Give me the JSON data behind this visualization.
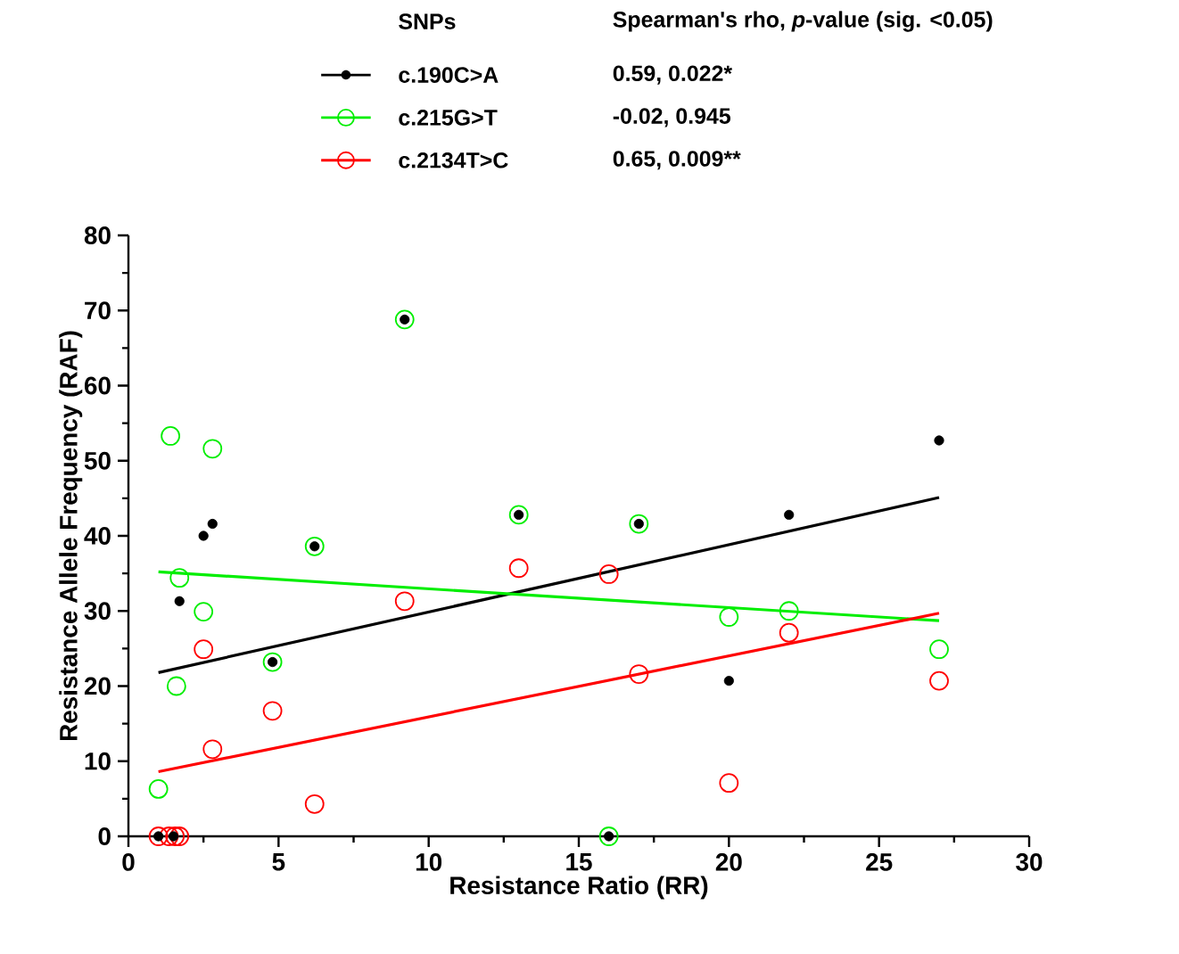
{
  "chart_data": {
    "type": "scatter",
    "xlabel": "Resistance Ratio (RR)",
    "ylabel": "Resistance Allele Frequency (RAF)",
    "legend_title": "SNPs",
    "legend": "top",
    "xlim": [
      0,
      30
    ],
    "xticks": [
      0,
      5,
      10,
      15,
      20,
      25,
      30
    ],
    "ylim": [
      0,
      80
    ],
    "yticks": [
      0,
      10,
      20,
      30,
      40,
      50,
      60,
      70,
      80
    ],
    "annotations": [
      "Spearman's rho, *p*-value (sig. <0.05)",
      "0.59, 0.022*",
      "-0.02, 0.945",
      "0.65, 0.009**"
    ],
    "series": [
      {
        "name": "c.190C>A",
        "color": "#000000",
        "marker": "circle",
        "x": [
          1,
          1.5,
          1.7,
          2.5,
          2.8,
          4.8,
          6.2,
          9.2,
          13,
          16,
          17,
          20,
          22,
          27
        ],
        "values": [
          0,
          0,
          31.3,
          40.0,
          41.6,
          23.2,
          38.6,
          68.8,
          42.8,
          0,
          41.6,
          20.7,
          42.8,
          52.7
        ]
      },
      {
        "name": "c.215G>T",
        "color": "#00ee00",
        "marker": "circle",
        "x": [
          1,
          1.4,
          1.6,
          1.7,
          2.5,
          2.8,
          4.8,
          6.2,
          9.2,
          13,
          16,
          17,
          20,
          22,
          27
        ],
        "values": [
          6.3,
          53.3,
          20.0,
          34.4,
          29.9,
          51.6,
          23.2,
          38.6,
          68.8,
          42.8,
          0,
          41.6,
          29.2,
          30.0,
          24.9
        ]
      },
      {
        "name": "c.2134T>C",
        "color": "#ff0000",
        "marker": "circle",
        "x": [
          1,
          1.35,
          1.55,
          1.7,
          2.5,
          2.8,
          4.8,
          6.2,
          9.2,
          13,
          16,
          17,
          20,
          22,
          27
        ],
        "values": [
          0,
          0,
          0,
          0,
          24.9,
          11.6,
          16.7,
          4.3,
          31.3,
          35.7,
          34.9,
          21.6,
          7.1,
          27.1,
          20.7
        ]
      },
      {
        "type": "line",
        "marker": "none",
        "color": "#000000",
        "x": [
          1,
          27
        ],
        "values": [
          21.8,
          45.1
        ]
      },
      {
        "type": "line",
        "marker": "none",
        "color": "#00ee00",
        "x": [
          1,
          27
        ],
        "values": [
          35.2,
          28.7
        ]
      },
      {
        "type": "line",
        "marker": "none",
        "color": "#ff0000",
        "x": [
          1,
          27
        ],
        "values": [
          8.6,
          29.7
        ]
      }
    ]
  }
}
